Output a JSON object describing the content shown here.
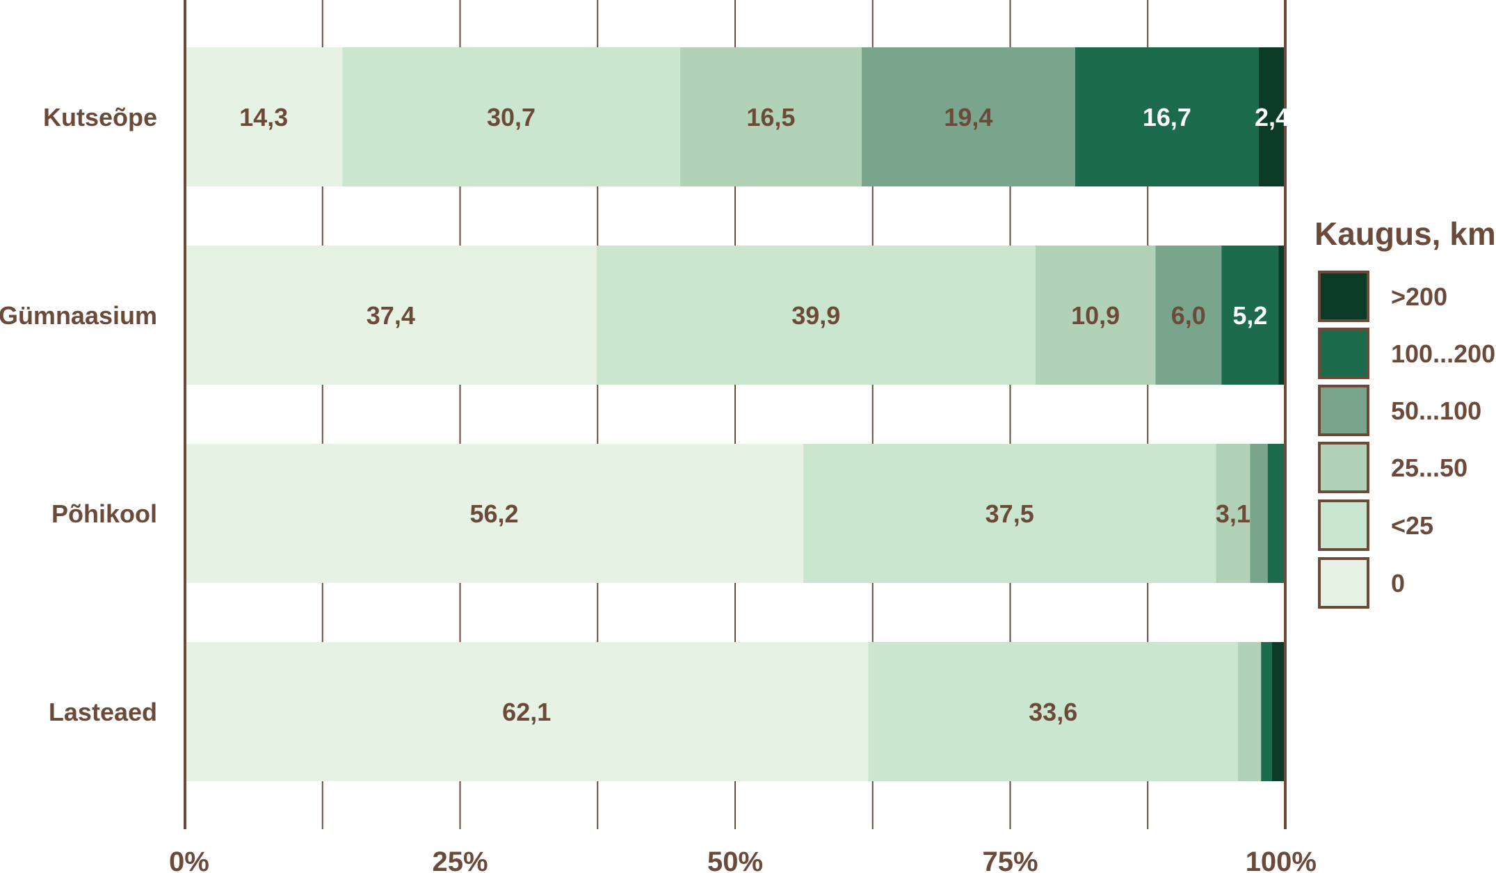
{
  "chart_data": {
    "type": "bar",
    "orientation": "horizontal",
    "stacked": true,
    "categories": [
      "Kutseõpe",
      "Gümnaasium",
      "Põhikool",
      "Lasteaed"
    ],
    "series": [
      {
        "name": "0",
        "color": "#e6f2e4",
        "values": [
          14.3,
          37.4,
          56.2,
          62.1
        ],
        "labels": [
          "14,3",
          "37,4",
          "56,2",
          "62,1"
        ]
      },
      {
        "name": "<25",
        "color": "#cbe6cf",
        "values": [
          30.7,
          39.9,
          37.5,
          33.6
        ],
        "labels": [
          "30,7",
          "39,9",
          "37,5",
          "33,6"
        ]
      },
      {
        "name": "25...50",
        "color": "#b2d2b7",
        "values": [
          16.5,
          10.9,
          3.1,
          2.1
        ],
        "labels": [
          "16,5",
          "10,9",
          "3,1",
          ""
        ]
      },
      {
        "name": "50...100",
        "color": "#78a58b",
        "values": [
          19.4,
          6.0,
          1.6,
          0.0
        ],
        "labels": [
          "19,4",
          "6,0",
          "",
          ""
        ]
      },
      {
        "name": "100...200",
        "color": "#1d6b4d",
        "values": [
          16.7,
          5.2,
          1.6,
          1.0
        ],
        "labels": [
          "16,7",
          "5,2",
          "",
          ""
        ]
      },
      {
        "name": ">200",
        "color": "#0b3b26",
        "values": [
          2.4,
          0.6,
          0.0,
          1.2
        ],
        "labels": [
          "2,4",
          "",
          "",
          ""
        ]
      }
    ],
    "x_ticks": [
      "0%",
      "25%",
      "50%",
      "75%",
      "100%"
    ],
    "xlim": [
      0,
      100
    ],
    "grid": true,
    "legend": {
      "title": "Kaugus, km",
      "placement": "right",
      "order": [
        ">200",
        "100...200",
        "50...100",
        "25...50",
        "<25",
        "0"
      ]
    },
    "label_colors": {
      "dark_text": "#6b4a3a",
      "light_text": "#ffffff"
    },
    "axis_color": "#6b4a3a"
  }
}
